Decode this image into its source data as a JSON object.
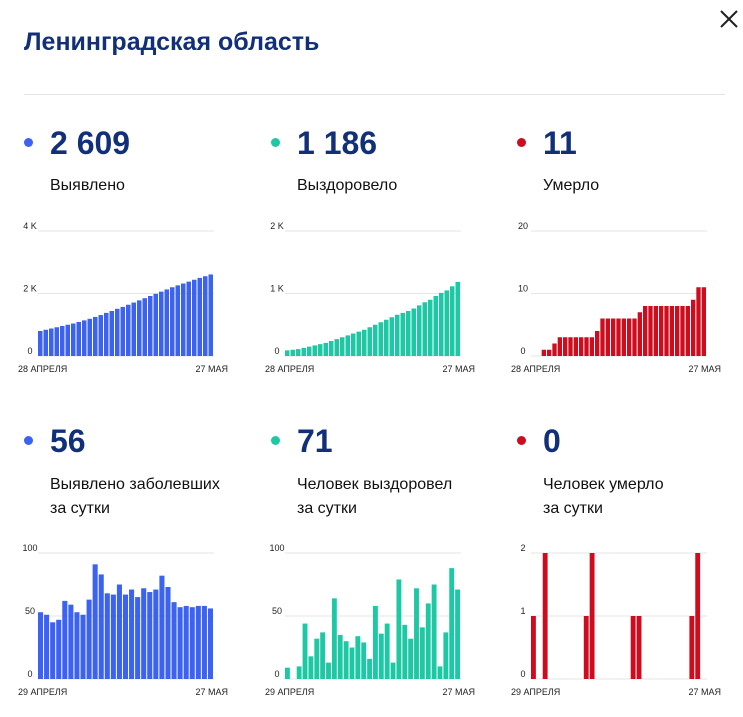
{
  "header": {
    "title": "Ленинградская область"
  },
  "colors": {
    "blue": "#3b62f0",
    "teal": "#1dc9a4",
    "red": "#cf0c1d",
    "grid": "#e6e6e6"
  },
  "icons": {
    "close": "close-icon"
  },
  "panels": [
    {
      "id": "detected",
      "value": "2 609",
      "label1": "Выявлено",
      "label2": "",
      "color": "blue",
      "chart_data": {
        "type": "bar",
        "ylim": [
          0,
          4000
        ],
        "yticks": [
          {
            "v": 0,
            "label": "0"
          },
          {
            "v": 2000,
            "label": "2 K"
          },
          {
            "v": 4000,
            "label": "4 K"
          }
        ],
        "xlabels": [
          "28 АПРЕЛЯ",
          "27 МАЯ"
        ],
        "values": [
          800,
          840,
          880,
          920,
          960,
          1000,
          1040,
          1090,
          1140,
          1190,
          1250,
          1310,
          1380,
          1440,
          1510,
          1570,
          1640,
          1710,
          1780,
          1850,
          1920,
          1990,
          2060,
          2130,
          2200,
          2260,
          2320,
          2380,
          2440,
          2500,
          2553,
          2609
        ]
      }
    },
    {
      "id": "recovered",
      "value": "1 186",
      "label1": "Выздоровело",
      "label2": "",
      "color": "teal",
      "chart_data": {
        "type": "bar",
        "ylim": [
          0,
          2000
        ],
        "yticks": [
          {
            "v": 0,
            "label": "0"
          },
          {
            "v": 1000,
            "label": "1 K"
          },
          {
            "v": 2000,
            "label": "2 K"
          }
        ],
        "xlabels": [
          "28 АПРЕЛЯ",
          "27 МАЯ"
        ],
        "values": [
          90,
          100,
          110,
          130,
          150,
          170,
          190,
          210,
          240,
          270,
          300,
          330,
          360,
          390,
          420,
          460,
          500,
          540,
          580,
          620,
          660,
          690,
          720,
          760,
          810,
          860,
          900,
          960,
          1010,
          1050,
          1115,
          1186
        ]
      }
    },
    {
      "id": "deaths",
      "value": "11",
      "label1": "Умерло",
      "label2": "",
      "color": "red",
      "chart_data": {
        "type": "bar",
        "ylim": [
          0,
          20
        ],
        "yticks": [
          {
            "v": 0,
            "label": "0"
          },
          {
            "v": 10,
            "label": "10"
          },
          {
            "v": 20,
            "label": "20"
          }
        ],
        "xlabels": [
          "28 АПРЕЛЯ",
          "27 МАЯ"
        ],
        "values": [
          0,
          0,
          1,
          1,
          2,
          3,
          3,
          3,
          3,
          3,
          3,
          3,
          4,
          6,
          6,
          6,
          6,
          6,
          6,
          6,
          7,
          8,
          8,
          8,
          8,
          8,
          8,
          8,
          8,
          8,
          9,
          11,
          11
        ]
      }
    },
    {
      "id": "detected-daily",
      "value": "56",
      "label1": "Выявлено заболевших",
      "label2": "за сутки",
      "color": "blue",
      "chart_data": {
        "type": "bar",
        "ylim": [
          0,
          100
        ],
        "yticks": [
          {
            "v": 0,
            "label": "0"
          },
          {
            "v": 50,
            "label": "50"
          },
          {
            "v": 100,
            "label": "100"
          }
        ],
        "xlabels": [
          "29 АПРЕЛЯ",
          "27 МАЯ"
        ],
        "values": [
          53,
          51,
          45,
          47,
          62,
          59,
          53,
          51,
          63,
          91,
          83,
          68,
          67,
          75,
          67,
          71,
          65,
          72,
          69,
          71,
          82,
          73,
          61,
          57,
          58,
          57,
          58,
          58,
          56
        ]
      }
    },
    {
      "id": "recovered-daily",
      "value": "71",
      "label1": "Человек выздоровел",
      "label2": "за сутки",
      "color": "teal",
      "chart_data": {
        "type": "bar",
        "ylim": [
          0,
          100
        ],
        "yticks": [
          {
            "v": 0,
            "label": "0"
          },
          {
            "v": 50,
            "label": "50"
          },
          {
            "v": 100,
            "label": "100"
          }
        ],
        "xlabels": [
          "29 АПРЕЛЯ",
          "27 МАЯ"
        ],
        "values": [
          9,
          0,
          10,
          44,
          18,
          32,
          37,
          13,
          64,
          35,
          30,
          25,
          34,
          29,
          16,
          58,
          36,
          44,
          13,
          79,
          43,
          32,
          72,
          41,
          60,
          75,
          10,
          37,
          88,
          71
        ]
      }
    },
    {
      "id": "deaths-daily",
      "value": "0",
      "label1": "Человек умерло",
      "label2": "за сутки",
      "color": "red",
      "chart_data": {
        "type": "bar",
        "ylim": [
          0,
          2
        ],
        "yticks": [
          {
            "v": 0,
            "label": "0"
          },
          {
            "v": 1,
            "label": "1"
          },
          {
            "v": 2,
            "label": "2"
          }
        ],
        "xlabels": [
          "29 АПРЕЛЯ",
          "27 МАЯ"
        ],
        "values": [
          1,
          0,
          2,
          0,
          0,
          0,
          0,
          0,
          0,
          1,
          2,
          0,
          0,
          0,
          0,
          0,
          0,
          1,
          1,
          0,
          0,
          0,
          0,
          0,
          0,
          0,
          0,
          1,
          2,
          0
        ]
      }
    }
  ]
}
